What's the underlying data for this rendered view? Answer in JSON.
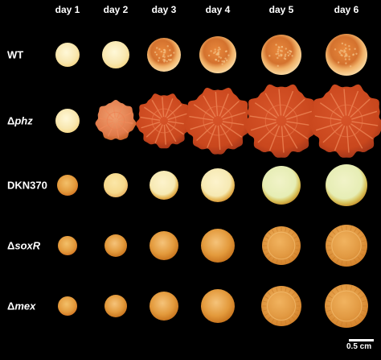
{
  "days": [
    "day 1",
    "day 2",
    "day 3",
    "day 4",
    "day 5",
    "day 6"
  ],
  "strains": [
    {
      "prefix": "",
      "name": "WT",
      "italic": false
    },
    {
      "prefix": "Δ",
      "name": "phz",
      "italic": true
    },
    {
      "prefix": "",
      "name": "DKN370",
      "italic": false
    },
    {
      "prefix": "Δ",
      "name": "soxR",
      "italic": true
    },
    {
      "prefix": "Δ",
      "name": "mex",
      "italic": true
    }
  ],
  "scale_bar": {
    "label": "0.5 cm"
  },
  "colony_colors": {
    "pale_yellow": "#f6d98c",
    "cream": "#f8e7b0",
    "orange": "#e39a3c",
    "deep_orange": "#d57a26",
    "red_orange": "#c9471d",
    "pale_green": "#e6edb4"
  }
}
